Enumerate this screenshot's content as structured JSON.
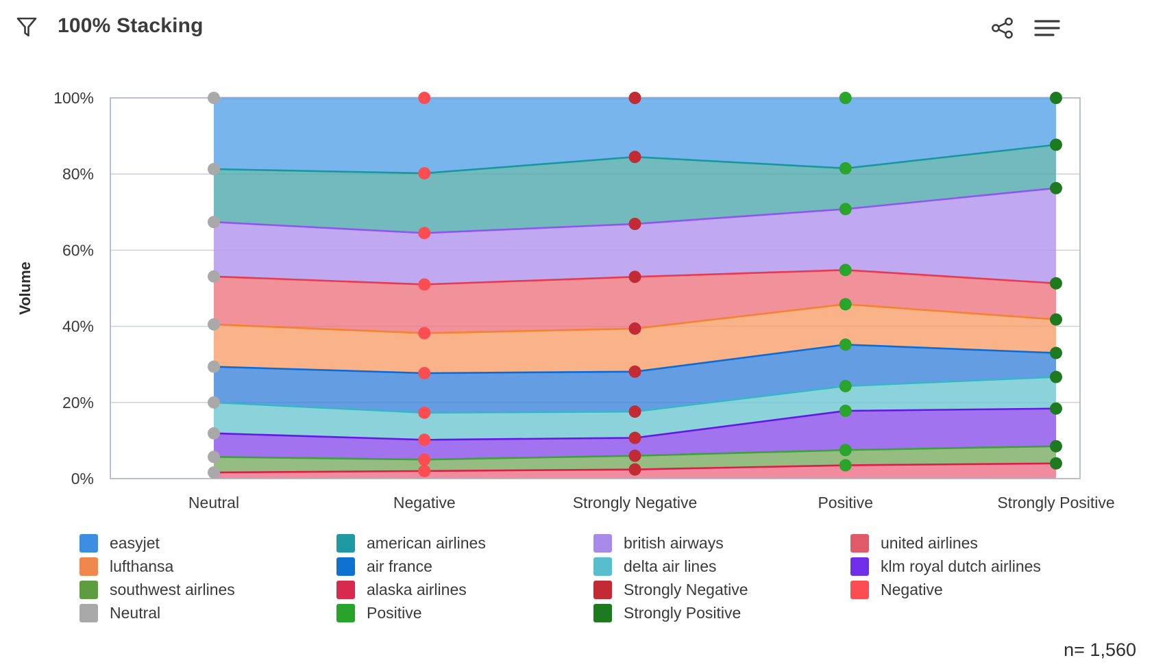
{
  "header": {
    "title": "100% Stacking",
    "icons": [
      "filter-icon",
      "share-icon",
      "menu-icon"
    ]
  },
  "footer": {
    "n_label": "n= 1,560"
  },
  "chart_data": {
    "type": "area",
    "stacking": "100%",
    "title": "100% Stacking",
    "xlabel": "",
    "ylabel": "Volume",
    "ylim": [
      0,
      100
    ],
    "grid": true,
    "legend_position": "bottom",
    "yticks": [
      "0%",
      "20%",
      "40%",
      "60%",
      "80%",
      "100%"
    ],
    "categories": [
      "Neutral",
      "Negative",
      "Strongly Negative",
      "Positive",
      "Strongly Positive"
    ],
    "category_point_colors": [
      "#A9A9A9",
      "#FB4D52",
      "#C22B33",
      "#2AA42A",
      "#1E7A1E"
    ],
    "stack_order": "bottom_to_top",
    "series": [
      {
        "name": "alaska airlines",
        "fill": "#EC6F85",
        "line": "#D81F47",
        "values": [
          1.6,
          2.0,
          2.4,
          3.5,
          4.0
        ]
      },
      {
        "name": "southwest airlines",
        "fill": "#7CAD62",
        "line": "#3FA03C",
        "values": [
          4.1,
          3.0,
          3.6,
          4.0,
          4.5
        ]
      },
      {
        "name": "klm royal dutch airlines",
        "fill": "#8A50EA",
        "line": "#6418E8",
        "values": [
          6.2,
          5.2,
          4.7,
          10.3,
          9.9
        ]
      },
      {
        "name": "delta air lines",
        "fill": "#6FC7D2",
        "line": "#38B6C6",
        "values": [
          8.1,
          7.1,
          6.9,
          6.5,
          8.3
        ]
      },
      {
        "name": "air france",
        "fill": "#3E84DB",
        "line": "#0B6CD8",
        "values": [
          9.4,
          10.4,
          10.5,
          10.9,
          6.3
        ]
      },
      {
        "name": "lufthansa",
        "fill": "#F9A06B",
        "line": "#F58230",
        "values": [
          11.1,
          10.5,
          11.3,
          10.6,
          8.8
        ]
      },
      {
        "name": "united airlines",
        "fill": "#ED7580",
        "line": "#E73A4E",
        "values": [
          12.6,
          12.8,
          13.6,
          9.0,
          9.5
        ]
      },
      {
        "name": "british airways",
        "fill": "#B094EC",
        "line": "#8F55F2",
        "values": [
          14.3,
          13.5,
          13.9,
          16.0,
          25.0
        ]
      },
      {
        "name": "american airlines",
        "fill": "#4FA9AC",
        "line": "#18989E",
        "values": [
          13.9,
          15.7,
          17.6,
          10.7,
          11.4
        ]
      },
      {
        "name": "easyjet",
        "fill": "#57A3E8",
        "line": "#3C91E5",
        "values": [
          18.7,
          19.8,
          15.5,
          18.5,
          12.3
        ]
      }
    ],
    "legend_columns": [
      [
        {
          "label": "easyjet",
          "color": "#3D8EE0"
        },
        {
          "label": "lufthansa",
          "color": "#F0874D"
        },
        {
          "label": "southwest airlines",
          "color": "#5E9C40"
        },
        {
          "label": "Neutral",
          "color": "#A9A9A9"
        }
      ],
      [
        {
          "label": "american airlines",
          "color": "#1F9AA3"
        },
        {
          "label": "air france",
          "color": "#0E72D2"
        },
        {
          "label": "alaska airlines",
          "color": "#D8294E"
        },
        {
          "label": "Positive",
          "color": "#28A32B"
        }
      ],
      [
        {
          "label": "british airways",
          "color": "#A88BE8"
        },
        {
          "label": "delta air lines",
          "color": "#59BECB"
        },
        {
          "label": "Strongly Negative",
          "color": "#C22B33"
        },
        {
          "label": "Strongly Positive",
          "color": "#1E7A1E"
        }
      ],
      [
        {
          "label": "united airlines",
          "color": "#E05A6A"
        },
        {
          "label": "klm royal dutch airlines",
          "color": "#6F2EE8"
        },
        {
          "label": "Negative",
          "color": "#FB4D52"
        }
      ]
    ],
    "sample_size_label": "n= 1,560"
  }
}
